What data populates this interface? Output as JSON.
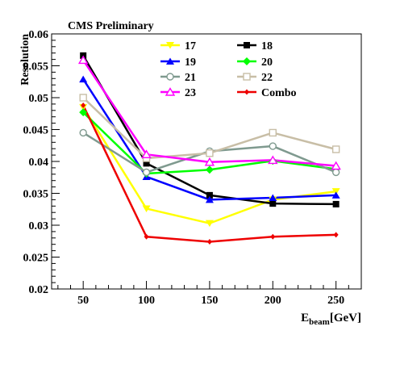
{
  "chart_data": {
    "type": "line",
    "title": "CMS Preliminary",
    "xlabel_main": "E",
    "xlabel_sub": "beam",
    "xlabel_unit": "[GeV]",
    "ylabel": "Resolution",
    "x": [
      50,
      100,
      150,
      200,
      250
    ],
    "xlim": [
      25,
      270
    ],
    "ylim": [
      0.02,
      0.06
    ],
    "xticks": [
      50,
      100,
      150,
      200,
      250
    ],
    "xtick_labels": [
      "50",
      "100",
      "150",
      "200",
      "250"
    ],
    "yticks": [
      0.02,
      0.025,
      0.03,
      0.035,
      0.04,
      0.045,
      0.05,
      0.055,
      0.06
    ],
    "ytick_labels": [
      "0.02",
      "0.025",
      "0.03",
      "0.035",
      "0.04",
      "0.045",
      "0.05",
      "0.055",
      "0.06"
    ],
    "grid": false,
    "legend_position": "top-right",
    "series": [
      {
        "name": "17",
        "color": "#ffff00",
        "marker": "triangle-down-filled",
        "values": [
          0.0485,
          0.0326,
          0.0303,
          0.034,
          0.0353
        ]
      },
      {
        "name": "18",
        "color": "#000000",
        "marker": "square-filled",
        "values": [
          0.0566,
          0.0397,
          0.0347,
          0.0334,
          0.0333
        ]
      },
      {
        "name": "19",
        "color": "#0000ff",
        "marker": "triangle-up-filled",
        "values": [
          0.0529,
          0.0376,
          0.034,
          0.0343,
          0.0347
        ]
      },
      {
        "name": "20",
        "color": "#00ff00",
        "marker": "diamond-filled",
        "values": [
          0.0477,
          0.0381,
          0.0387,
          0.0401,
          0.0388
        ]
      },
      {
        "name": "21",
        "color": "#7f9a8f",
        "marker": "circle-open",
        "values": [
          0.0445,
          0.0383,
          0.0416,
          0.0424,
          0.0383
        ]
      },
      {
        "name": "22",
        "color": "#c8bea6",
        "marker": "square-open",
        "values": [
          0.05,
          0.0405,
          0.0413,
          0.0445,
          0.0419
        ]
      },
      {
        "name": "23",
        "color": "#ff00ff",
        "marker": "triangle-up-open",
        "values": [
          0.0559,
          0.0411,
          0.0399,
          0.0402,
          0.0393
        ]
      },
      {
        "name": "Combo",
        "color": "#ee0000",
        "marker": "diamond-small",
        "values": [
          0.0488,
          0.0282,
          0.0274,
          0.0282,
          0.0285
        ]
      }
    ]
  }
}
